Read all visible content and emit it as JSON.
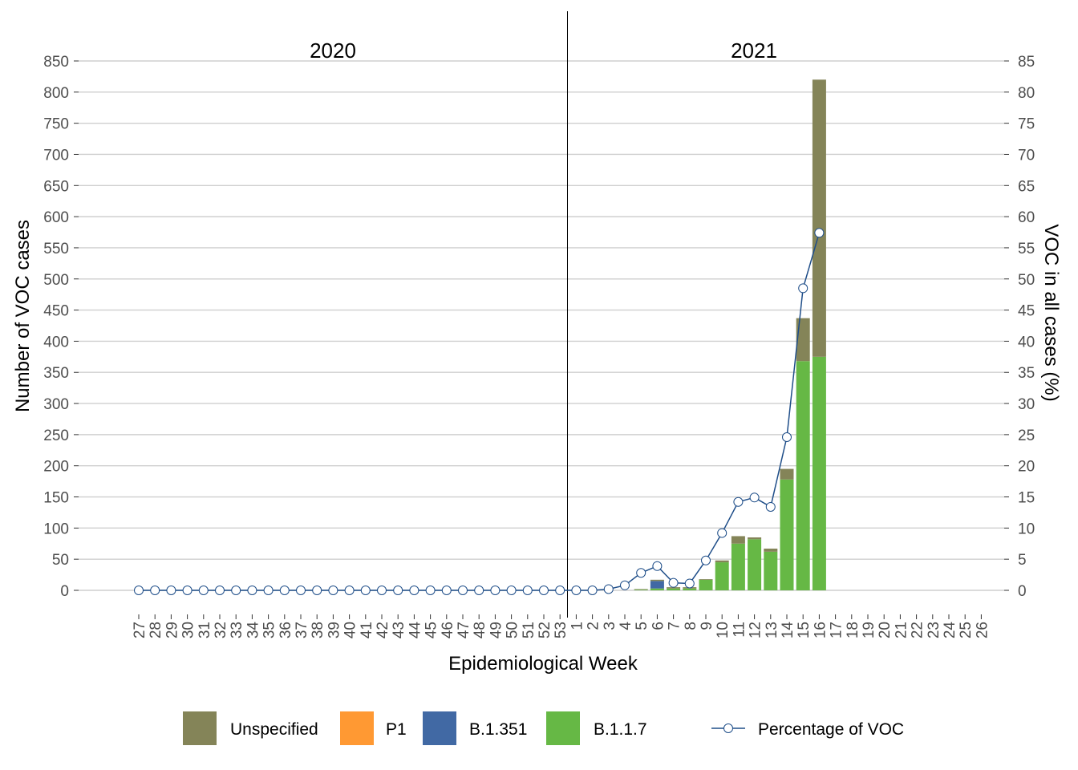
{
  "chart_data": {
    "type": "bar",
    "stacked": true,
    "xlabel": "Epidemiological Week",
    "ylabel": "Number of VOC cases",
    "y2label": "VOC in all cases (%)",
    "ylim": [
      0,
      850
    ],
    "y2lim": [
      0,
      85
    ],
    "y_ticks": [
      0,
      50,
      100,
      150,
      200,
      250,
      300,
      350,
      400,
      450,
      500,
      550,
      600,
      650,
      700,
      750,
      800,
      850
    ],
    "y2_ticks": [
      0,
      5,
      10,
      15,
      20,
      25,
      30,
      35,
      40,
      45,
      50,
      55,
      60,
      65,
      70,
      75,
      80,
      85
    ],
    "grid": true,
    "year_labels": [
      "2020",
      "2021"
    ],
    "categories": [
      "27",
      "28",
      "29",
      "30",
      "31",
      "32",
      "33",
      "34",
      "35",
      "36",
      "37",
      "38",
      "39",
      "40",
      "41",
      "42",
      "43",
      "44",
      "45",
      "46",
      "47",
      "48",
      "49",
      "50",
      "51",
      "52",
      "53",
      "1",
      "2",
      "3",
      "4",
      "5",
      "6",
      "7",
      "8",
      "9",
      "10",
      "11",
      "12",
      "13",
      "14",
      "15",
      "16",
      "17",
      "18",
      "19",
      "20",
      "21",
      "22",
      "23",
      "24",
      "25",
      "26"
    ],
    "series": [
      {
        "name": "B.1.1.7",
        "color": "#66b845",
        "values": [
          0,
          0,
          0,
          0,
          0,
          0,
          0,
          0,
          0,
          0,
          0,
          0,
          0,
          0,
          0,
          0,
          0,
          0,
          0,
          0,
          0,
          0,
          0,
          0,
          0,
          0,
          0,
          0,
          0,
          0,
          0,
          1,
          3,
          3,
          3,
          17,
          45,
          75,
          82,
          62,
          178,
          368,
          375,
          0,
          0,
          0,
          0,
          0,
          0,
          0,
          0,
          0,
          0
        ]
      },
      {
        "name": "B.1.351",
        "color": "#4169a4",
        "values": [
          0,
          0,
          0,
          0,
          0,
          0,
          0,
          0,
          0,
          0,
          0,
          0,
          0,
          0,
          0,
          0,
          0,
          0,
          0,
          0,
          0,
          0,
          0,
          0,
          0,
          0,
          0,
          0,
          0,
          0,
          0,
          0,
          12,
          0,
          0,
          0,
          0,
          0,
          0,
          0,
          0,
          0,
          0,
          0,
          0,
          0,
          0,
          0,
          0,
          0,
          0,
          0,
          0
        ]
      },
      {
        "name": "P1",
        "color": "#ff9933",
        "values": [
          0,
          0,
          0,
          0,
          0,
          0,
          0,
          0,
          0,
          0,
          0,
          0,
          0,
          0,
          0,
          0,
          0,
          0,
          0,
          0,
          0,
          0,
          0,
          0,
          0,
          0,
          0,
          0,
          0,
          0,
          0,
          0,
          0,
          0,
          0,
          0,
          0,
          0,
          0,
          0,
          0,
          0,
          0,
          0,
          0,
          0,
          0,
          0,
          0,
          0,
          0,
          0,
          0
        ]
      },
      {
        "name": "Unspecified",
        "color": "#848458",
        "values": [
          0,
          0,
          0,
          0,
          0,
          0,
          0,
          0,
          0,
          0,
          0,
          0,
          0,
          0,
          0,
          0,
          0,
          0,
          0,
          0,
          0,
          0,
          0,
          0,
          0,
          0,
          0,
          0,
          0,
          0,
          0,
          1,
          2,
          2,
          2,
          1,
          3,
          12,
          3,
          5,
          17,
          69,
          445,
          0,
          0,
          0,
          0,
          0,
          0,
          0,
          0,
          0,
          0
        ]
      }
    ],
    "line": {
      "name": "Percentage of VOC",
      "color": "#1f4e89",
      "values": [
        0,
        0,
        0,
        0,
        0,
        0,
        0,
        0,
        0,
        0,
        0,
        0,
        0,
        0,
        0,
        0,
        0,
        0,
        0,
        0,
        0,
        0,
        0,
        0,
        0,
        0,
        0,
        0,
        0,
        0.2,
        0.8,
        2.8,
        3.9,
        1.2,
        1.1,
        4.8,
        9.2,
        14.2,
        14.9,
        13.4,
        24.6,
        48.5,
        57.4
      ]
    },
    "legend": {
      "position": "bottom",
      "items": [
        "Unspecified",
        "P1",
        "B.1.351",
        "B.1.1.7",
        "Percentage of VOC"
      ]
    }
  }
}
